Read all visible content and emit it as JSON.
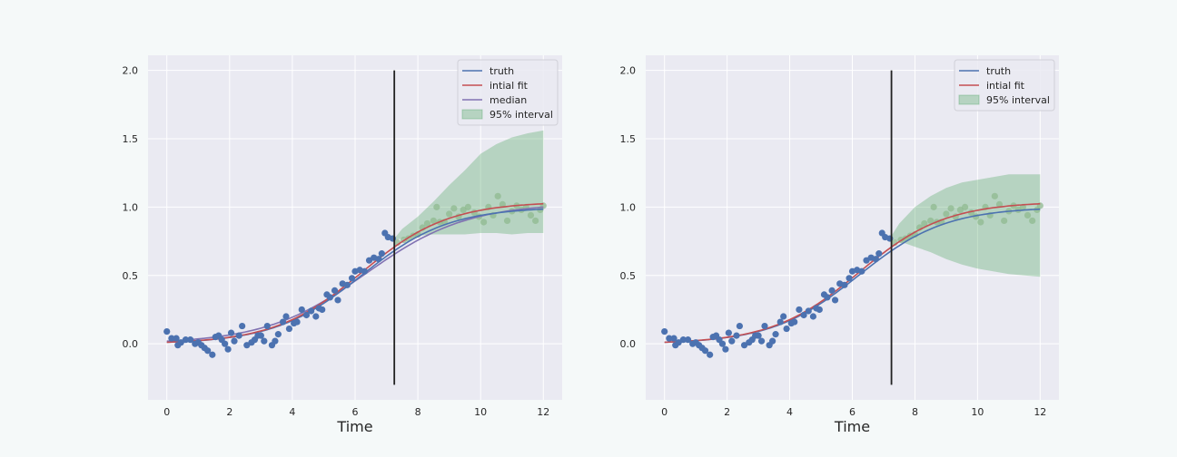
{
  "colors": {
    "figure_bg": "#f5f9f9",
    "axes_bg": "#eaeaf2",
    "grid": "#ffffff",
    "truth": "#4c72b0",
    "fit": "#c44e52",
    "median": "#8172b2",
    "interval": "#55a868",
    "observed": "#4c72b0",
    "future": "#8fb98f",
    "vline": "#222222",
    "text": "#262626"
  },
  "chart_data": [
    {
      "type": "scatter",
      "xlabel": "Time",
      "ylabel": "",
      "xlim": [
        -0.6,
        12.6
      ],
      "ylim": [
        -0.41,
        2.11
      ],
      "xticks": [
        0,
        2,
        4,
        6,
        8,
        10,
        12
      ],
      "yticks": [
        0.0,
        0.5,
        1.0,
        1.5,
        2.0
      ],
      "grid": true,
      "legend_placement": "top-right",
      "legend": [
        "truth",
        "intial fit",
        "median",
        "95% interval"
      ],
      "vertical_line": {
        "x": 7.25,
        "y": [
          -0.3,
          2.0
        ]
      },
      "curve_params": {
        "truth": {
          "k": 1.0,
          "r": 0.72,
          "t0": 6.2
        },
        "fit": {
          "k": 1.04,
          "r": 0.72,
          "t0": 6.2
        },
        "median": {
          "k": 1.03,
          "r": 0.62,
          "t0": 6.35
        }
      },
      "interval_band": {
        "x": [
          7.25,
          7.5,
          8.0,
          8.5,
          9.0,
          9.5,
          10.0,
          10.5,
          11.0,
          11.5,
          12.0
        ],
        "lower": [
          0.76,
          0.77,
          0.79,
          0.8,
          0.8,
          0.8,
          0.81,
          0.81,
          0.8,
          0.81,
          0.81
        ],
        "upper": [
          0.77,
          0.84,
          0.93,
          1.04,
          1.16,
          1.27,
          1.39,
          1.46,
          1.51,
          1.54,
          1.56
        ]
      },
      "observed": {
        "x": [
          0.0,
          0.15,
          0.3,
          0.35,
          0.45,
          0.6,
          0.75,
          0.9,
          1.0,
          1.1,
          1.2,
          1.3,
          1.45,
          1.55,
          1.65,
          1.75,
          1.85,
          1.95,
          2.05,
          2.15,
          2.3,
          2.4,
          2.55,
          2.7,
          2.8,
          2.9,
          3.0,
          3.1,
          3.2,
          3.35,
          3.45,
          3.55,
          3.7,
          3.8,
          3.9,
          4.05,
          4.15,
          4.3,
          4.45,
          4.6,
          4.75,
          4.85,
          4.95,
          5.1,
          5.2,
          5.35,
          5.45,
          5.6,
          5.75,
          5.9,
          6.0,
          6.15,
          6.3,
          6.45,
          6.6,
          6.75,
          6.85,
          6.95,
          7.05,
          7.2
        ],
        "y": [
          0.09,
          0.04,
          0.04,
          -0.01,
          0.01,
          0.03,
          0.03,
          0.0,
          0.01,
          -0.01,
          -0.03,
          -0.05,
          -0.08,
          0.05,
          0.06,
          0.03,
          0.0,
          -0.04,
          0.08,
          0.02,
          0.06,
          0.13,
          -0.01,
          0.01,
          0.03,
          0.06,
          0.06,
          0.02,
          0.13,
          -0.01,
          0.02,
          0.07,
          0.16,
          0.2,
          0.11,
          0.15,
          0.16,
          0.25,
          0.21,
          0.24,
          0.2,
          0.26,
          0.25,
          0.36,
          0.34,
          0.39,
          0.32,
          0.44,
          0.43,
          0.48,
          0.53,
          0.54,
          0.53,
          0.61,
          0.63,
          0.62,
          0.66,
          0.81,
          0.78,
          0.77
        ]
      },
      "future": {
        "x": [
          7.35,
          7.55,
          7.7,
          7.85,
          8.0,
          8.15,
          8.3,
          8.5,
          8.6,
          8.7,
          8.85,
          9.0,
          9.15,
          9.3,
          9.45,
          9.6,
          9.8,
          9.95,
          10.1,
          10.25,
          10.4,
          10.55,
          10.7,
          10.85,
          11.0,
          11.15,
          11.3,
          11.45,
          11.6,
          11.75,
          11.9,
          12.0
        ],
        "y": [
          0.74,
          0.76,
          0.77,
          0.79,
          0.8,
          0.85,
          0.88,
          0.9,
          1.0,
          0.89,
          0.89,
          0.95,
          0.99,
          0.93,
          0.98,
          1.0,
          0.96,
          0.93,
          0.89,
          1.0,
          0.94,
          1.08,
          1.02,
          0.9,
          0.97,
          1.01,
          0.98,
          1.0,
          0.94,
          0.9,
          0.98,
          1.01
        ]
      }
    },
    {
      "type": "scatter",
      "xlabel": "Time",
      "ylabel": "",
      "xlim": [
        -0.6,
        12.6
      ],
      "ylim": [
        -0.41,
        2.11
      ],
      "xticks": [
        0,
        2,
        4,
        6,
        8,
        10,
        12
      ],
      "yticks": [
        0.0,
        0.5,
        1.0,
        1.5,
        2.0
      ],
      "grid": true,
      "legend_placement": "top-right",
      "legend": [
        "truth",
        "intial fit",
        "95% interval"
      ],
      "vertical_line": {
        "x": 7.25,
        "y": [
          -0.3,
          2.0
        ]
      },
      "curve_params": {
        "truth": {
          "k": 1.0,
          "r": 0.72,
          "t0": 6.2
        },
        "fit": {
          "k": 1.04,
          "r": 0.72,
          "t0": 6.2
        }
      },
      "interval_band": {
        "x": [
          7.25,
          7.5,
          8.0,
          8.5,
          9.0,
          9.5,
          10.0,
          10.5,
          11.0,
          11.5,
          12.0
        ],
        "lower": [
          0.77,
          0.75,
          0.71,
          0.67,
          0.62,
          0.58,
          0.55,
          0.53,
          0.51,
          0.5,
          0.49
        ],
        "upper": [
          0.79,
          0.88,
          1.0,
          1.08,
          1.14,
          1.18,
          1.2,
          1.22,
          1.24,
          1.24,
          1.24
        ]
      },
      "observed": {
        "x": [
          0.0,
          0.15,
          0.3,
          0.35,
          0.45,
          0.6,
          0.75,
          0.9,
          1.0,
          1.1,
          1.2,
          1.3,
          1.45,
          1.55,
          1.65,
          1.75,
          1.85,
          1.95,
          2.05,
          2.15,
          2.3,
          2.4,
          2.55,
          2.7,
          2.8,
          2.9,
          3.0,
          3.1,
          3.2,
          3.35,
          3.45,
          3.55,
          3.7,
          3.8,
          3.9,
          4.05,
          4.15,
          4.3,
          4.45,
          4.6,
          4.75,
          4.85,
          4.95,
          5.1,
          5.2,
          5.35,
          5.45,
          5.6,
          5.75,
          5.9,
          6.0,
          6.15,
          6.3,
          6.45,
          6.6,
          6.75,
          6.85,
          6.95,
          7.05,
          7.2
        ],
        "y": [
          0.09,
          0.04,
          0.04,
          -0.01,
          0.01,
          0.03,
          0.03,
          0.0,
          0.01,
          -0.01,
          -0.03,
          -0.05,
          -0.08,
          0.05,
          0.06,
          0.03,
          0.0,
          -0.04,
          0.08,
          0.02,
          0.06,
          0.13,
          -0.01,
          0.01,
          0.03,
          0.06,
          0.06,
          0.02,
          0.13,
          -0.01,
          0.02,
          0.07,
          0.16,
          0.2,
          0.11,
          0.15,
          0.16,
          0.25,
          0.21,
          0.24,
          0.2,
          0.26,
          0.25,
          0.36,
          0.34,
          0.39,
          0.32,
          0.44,
          0.43,
          0.48,
          0.53,
          0.54,
          0.53,
          0.61,
          0.63,
          0.62,
          0.66,
          0.81,
          0.78,
          0.77
        ]
      },
      "future": {
        "x": [
          7.35,
          7.55,
          7.7,
          7.85,
          8.0,
          8.15,
          8.3,
          8.5,
          8.6,
          8.7,
          8.85,
          9.0,
          9.15,
          9.3,
          9.45,
          9.6,
          9.8,
          9.95,
          10.1,
          10.25,
          10.4,
          10.55,
          10.7,
          10.85,
          11.0,
          11.15,
          11.3,
          11.45,
          11.6,
          11.75,
          11.9,
          12.0
        ],
        "y": [
          0.74,
          0.76,
          0.77,
          0.79,
          0.8,
          0.85,
          0.88,
          0.9,
          1.0,
          0.89,
          0.89,
          0.95,
          0.99,
          0.93,
          0.98,
          1.0,
          0.96,
          0.93,
          0.89,
          1.0,
          0.94,
          1.08,
          1.02,
          0.9,
          0.97,
          1.01,
          0.98,
          1.0,
          0.94,
          0.9,
          0.98,
          1.01
        ]
      }
    }
  ]
}
